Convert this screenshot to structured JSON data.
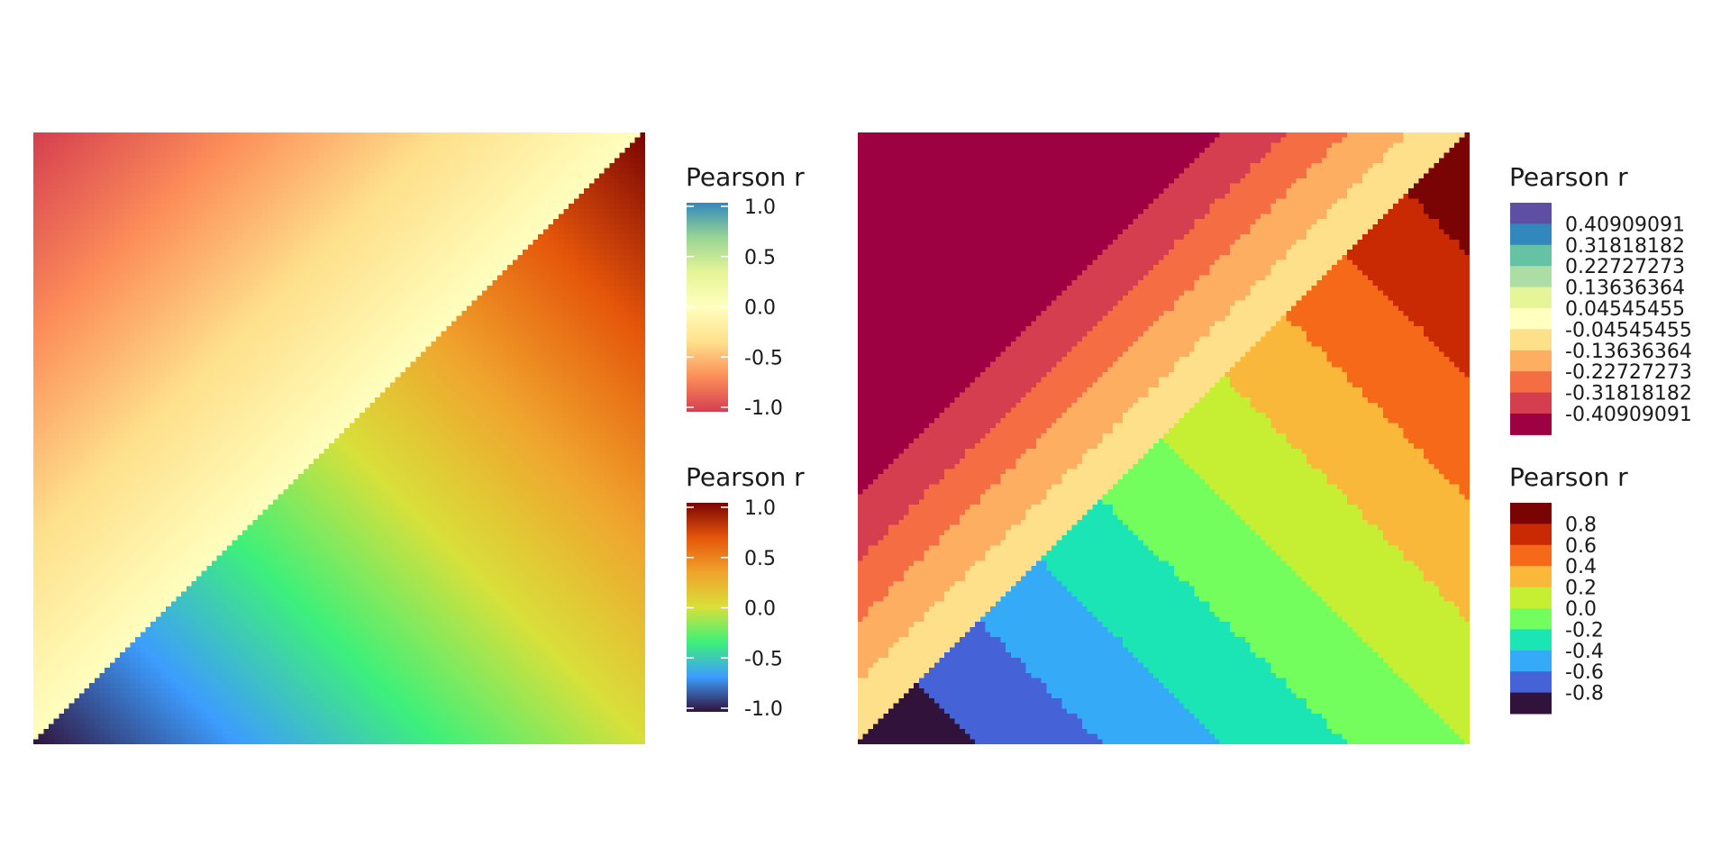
{
  "chart_data": [
    {
      "type": "heatmap",
      "title": "",
      "xlabel": "",
      "ylabel": "",
      "grid": false,
      "n_cells": 120,
      "diagonal": "upper-left triangle uses scale 1, lower-right triangle uses scale 2",
      "value_model": "cell value at column x in [0,1] and row y in [0,1] from the top: upper triangle = x + y - 1; lower triangle = x - y",
      "scales": [
        {
          "region": "upper-left",
          "legend_title": "Pearson r",
          "legend_type": "continuous",
          "range": [
            -1,
            1
          ],
          "ticks": [
            1.0,
            0.5,
            0.0,
            -0.5,
            -1.0
          ],
          "tick_labels": [
            "1.0",
            "0.5",
            "0.0",
            "-0.5",
            "-1.0"
          ],
          "colors": [
            "#d53e4f",
            "#fc8d59",
            "#fee08b",
            "#ffffbf",
            "#e6f598",
            "#99d594",
            "#3288bd"
          ]
        },
        {
          "region": "lower-right",
          "legend_title": "Pearson r",
          "legend_type": "continuous",
          "range": [
            -1,
            1
          ],
          "ticks": [
            1.0,
            0.5,
            0.0,
            -0.5,
            -1.0
          ],
          "tick_labels": [
            "1.0",
            "0.5",
            "0.0",
            "-0.5",
            "-1.0"
          ],
          "colors": [
            "#30123b",
            "#3d9cfe",
            "#3ef07a",
            "#d8e03a",
            "#f0a32d",
            "#e5560a",
            "#7a0403"
          ]
        }
      ]
    },
    {
      "type": "heatmap",
      "title": "",
      "xlabel": "",
      "ylabel": "",
      "grid": false,
      "n_cells": 120,
      "value_model": "same fields as the first panel, shown as binned colors",
      "scales": [
        {
          "region": "upper-left",
          "legend_title": "Pearson r",
          "legend_type": "binned",
          "labels": [
            "0.40909091",
            "0.31818182",
            "0.22727273",
            "0.13636364",
            "0.04545455",
            "-0.04545455",
            "-0.13636364",
            "-0.22727273",
            "-0.31818182",
            "-0.40909091"
          ],
          "colors": [
            "#5e4fa2",
            "#3288bd",
            "#66c2a5",
            "#abdda4",
            "#e6f598",
            "#ffffbf",
            "#fee08b",
            "#fdae61",
            "#f46d43",
            "#d53e4f",
            "#9e0142"
          ],
          "bin_breaks": [
            0.5,
            0.4,
            0.3,
            0.2,
            0.1,
            0.0,
            -0.1,
            -0.2,
            -0.3,
            -0.4
          ]
        },
        {
          "region": "lower-right",
          "legend_title": "Pearson r",
          "legend_type": "binned",
          "labels": [
            "0.8",
            "0.6",
            "0.4",
            "0.2",
            "0.0",
            "-0.2",
            "-0.4",
            "-0.6",
            "-0.8"
          ],
          "colors": [
            "#7a0403",
            "#c92903",
            "#f56918",
            "#f9b83a",
            "#c6ef34",
            "#73fe5e",
            "#1be5b5",
            "#35abf8",
            "#4662d7",
            "#30123b"
          ],
          "bin_breaks": [
            0.8,
            0.6,
            0.4,
            0.2,
            0.0,
            -0.2,
            -0.4,
            -0.6,
            -0.8
          ]
        }
      ]
    }
  ]
}
